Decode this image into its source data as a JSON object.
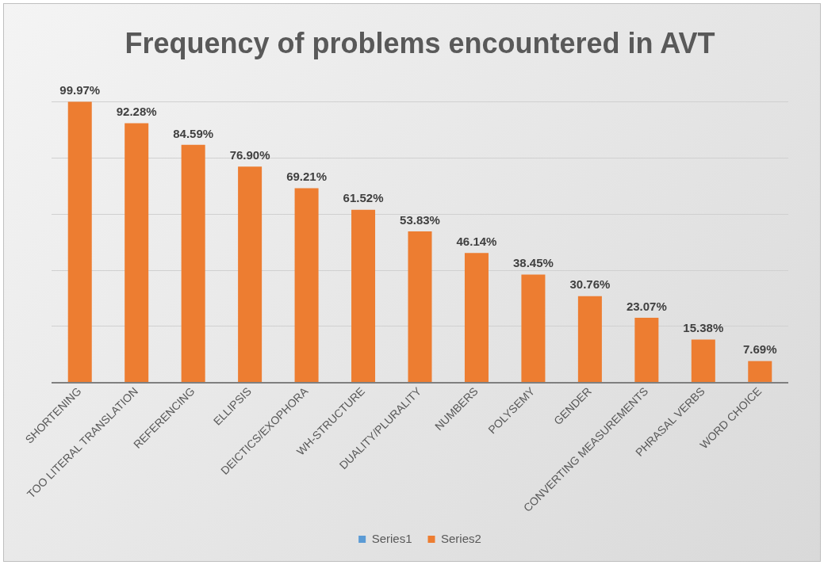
{
  "chart_data": {
    "type": "bar",
    "title": "Frequency of problems encountered in AVT",
    "categories": [
      "SHORTENING",
      "TOO LITERAL TRANSLATION",
      "REFERENCING",
      "ELLIPSIS",
      "DEICTICS/EXOPHORA",
      "WH-STRUCTURE",
      "DUALITY/PLURALITY",
      "NUMBERS",
      "POLYSEMY",
      "GENDER",
      "CONVERTING MEASUREMENTS",
      "PHRASAL VERBS",
      "WORD CHOICE"
    ],
    "series": [
      {
        "name": "Series1",
        "color": "#5b9bd5",
        "values": [
          null,
          null,
          null,
          null,
          null,
          null,
          null,
          null,
          null,
          null,
          null,
          null,
          null
        ]
      },
      {
        "name": "Series2",
        "color": "#ed7d31",
        "values": [
          99.97,
          92.28,
          84.59,
          76.9,
          69.21,
          61.52,
          53.83,
          46.14,
          38.45,
          30.76,
          23.07,
          15.38,
          7.69
        ],
        "value_labels": [
          "99.97%",
          "92.28%",
          "84.59%",
          "76.90%",
          "69.21%",
          "61.52%",
          "53.83%",
          "46.14%",
          "38.45%",
          "30.76%",
          "23.07%",
          "15.38%",
          "7.69%"
        ]
      }
    ],
    "ylim": [
      0,
      100
    ],
    "yticks": [
      {
        "value": 0,
        "label": null
      },
      {
        "value": 20,
        "label": null
      },
      {
        "value": 40,
        "label": null
      },
      {
        "value": 60,
        "label": null
      },
      {
        "value": 80,
        "label": null
      },
      {
        "value": 100,
        "label": null
      }
    ],
    "grid": "y",
    "tick_labels": "x",
    "legend": "bottom"
  }
}
